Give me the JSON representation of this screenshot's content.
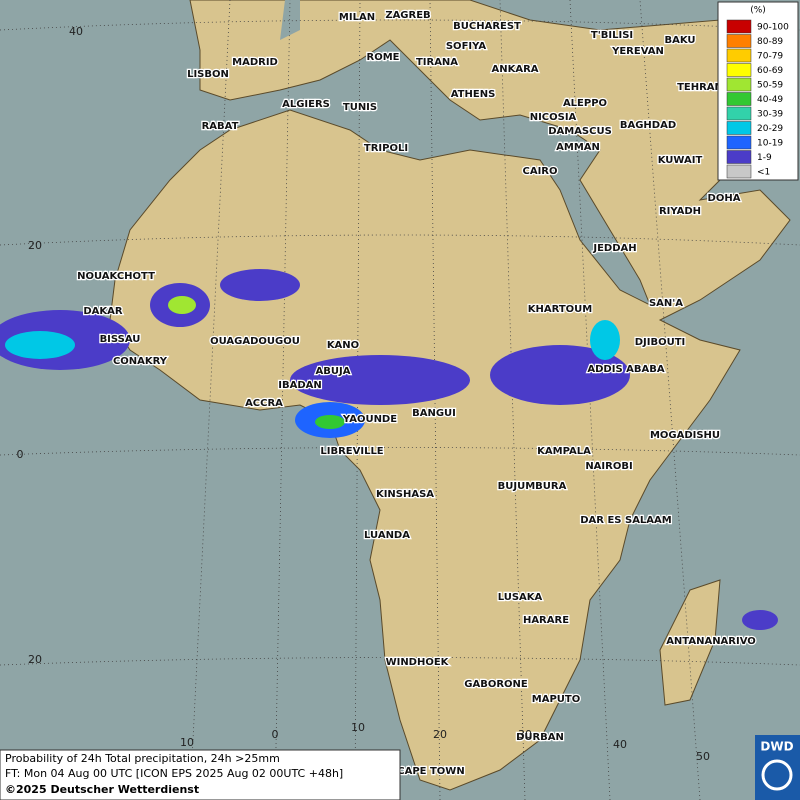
{
  "map": {
    "legend": {
      "unit": "(%)",
      "items": [
        {
          "label": "90-100",
          "color": "#c80000"
        },
        {
          "label": "80-89",
          "color": "#ff7f00"
        },
        {
          "label": "70-79",
          "color": "#ffcc00"
        },
        {
          "label": "60-69",
          "color": "#ffff00"
        },
        {
          "label": "50-59",
          "color": "#a0e632"
        },
        {
          "label": "40-49",
          "color": "#32c832"
        },
        {
          "label": "30-39",
          "color": "#32d2aa"
        },
        {
          "label": "20-29",
          "color": "#00c8e6"
        },
        {
          "label": "10-19",
          "color": "#1e64ff"
        },
        {
          "label": "1-9",
          "color": "#4b3cc8"
        },
        {
          "label": "<1",
          "color": "#c8c8c8"
        }
      ]
    },
    "lat_labels": [
      "40",
      "20",
      "0",
      "20"
    ],
    "lon_labels": [
      "10",
      "0",
      "10",
      "20",
      "30",
      "40",
      "50"
    ],
    "cities": [
      "MILAN",
      "ZAGREB",
      "BUCHAREST",
      "T'BILISI",
      "BAKU",
      "ROME",
      "SOFIYA",
      "YEREVAN",
      "LISBON",
      "MADRID",
      "TIRANA",
      "ANKARA",
      "TEHRAN",
      "ALGIERS",
      "TUNIS",
      "ATHENS",
      "ALEPPO",
      "RABAT",
      "NICOSIA",
      "BAGHDAD",
      "TRIPOLI",
      "DAMASCUS",
      "AMMAN",
      "KUWAIT",
      "CAIRO",
      "DOHA",
      "RIYADH",
      "JEDDAH",
      "NOUAKCHOTT",
      "SAN'A",
      "KHARTOUM",
      "DAKAR",
      "BISSAU",
      "OUAGADOUGOU",
      "KANO",
      "DJIBOUTI",
      "CONAKRY",
      "ABUJA",
      "ADDIS ABABA",
      "IBADAN",
      "ACCRA",
      "YAOUNDE",
      "BANGUI",
      "MOGADISHU",
      "LIBREVILLE",
      "KAMPALA",
      "NAIROBI",
      "KINSHASA",
      "BUJUMBURA",
      "DAR ES SALAAM",
      "LUANDA",
      "LUSAKA",
      "HARARE",
      "ANTANANARIVO",
      "WINDHOEK",
      "GABORONE",
      "MAPUTO",
      "DURBAN",
      "CAPE TOWN"
    ],
    "info": [
      "Probability of 24h Total precipitation, 24h >25mm",
      "FT: Mon 04 Aug 00 UTC [ICON EPS 2025 Aug 02 00UTC +48h]",
      "©2025 Deutscher Wetterdienst"
    ],
    "logo": "DWD"
  }
}
